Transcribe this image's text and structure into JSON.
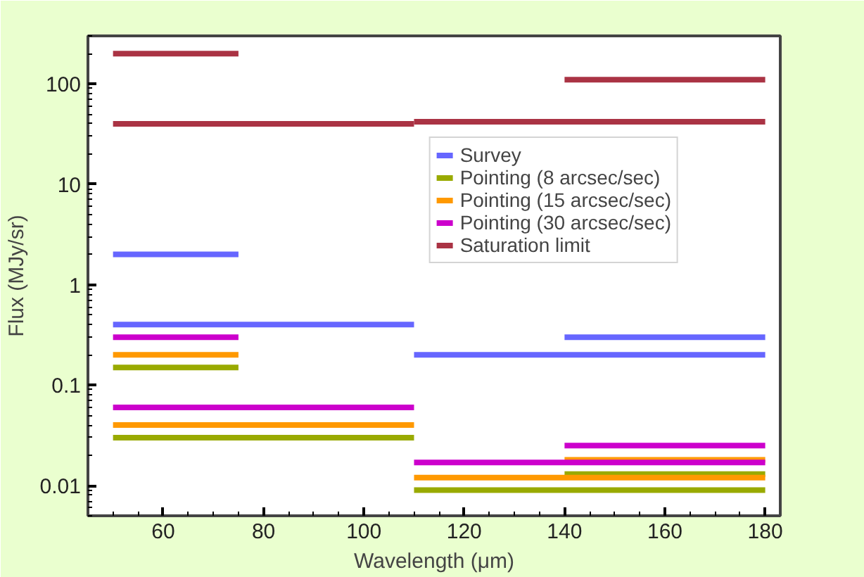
{
  "chart_data": {
    "type": "line",
    "xlabel": "Wavelength (μm)",
    "ylabel": "Flux (MJy/sr)",
    "xlim": [
      45,
      183
    ],
    "xticks": [
      60,
      80,
      100,
      120,
      140,
      160,
      180
    ],
    "ylim": [
      0.005,
      300
    ],
    "yticks": [
      0.01,
      0.1,
      1,
      10,
      100
    ],
    "log": "y",
    "grid": false,
    "legend": "top right",
    "line_style": "solid",
    "marker": "none",
    "series": [
      {
        "name": "Survey",
        "color": "#6666ff",
        "x": [
          50,
          75,
          null,
          50,
          110,
          null,
          110,
          180,
          null,
          140,
          180
        ],
        "values": [
          2,
          2,
          null,
          0.4,
          0.4,
          null,
          0.2,
          0.2,
          null,
          0.3,
          0.3
        ]
      },
      {
        "name": "Pointing (8 arcsec/sec)",
        "color": "#99aa00",
        "x": [
          50,
          75,
          null,
          50,
          110,
          null,
          110,
          180,
          null,
          140,
          180
        ],
        "values": [
          0.15,
          0.15,
          null,
          0.03,
          0.03,
          null,
          0.009,
          0.009,
          null,
          0.013,
          0.013
        ]
      },
      {
        "name": "Pointing (15 arcsec/sec)",
        "color": "#ff9900",
        "x": [
          50,
          75,
          null,
          50,
          110,
          null,
          110,
          180,
          null,
          140,
          180
        ],
        "values": [
          0.2,
          0.2,
          null,
          0.04,
          0.04,
          null,
          0.012,
          0.012,
          null,
          0.018,
          0.018
        ]
      },
      {
        "name": "Pointing (30 arcsec/sec)",
        "color": "#cc00cc",
        "x": [
          50,
          75,
          null,
          50,
          110,
          null,
          110,
          180,
          null,
          140,
          180
        ],
        "values": [
          0.3,
          0.3,
          null,
          0.06,
          0.06,
          null,
          0.017,
          0.017,
          null,
          0.025,
          0.025
        ]
      },
      {
        "name": "Saturation limit",
        "color": "#aa3344",
        "x": [
          50,
          75,
          null,
          50,
          110,
          null,
          110,
          180,
          null,
          140,
          180
        ],
        "values": [
          200,
          200,
          null,
          40,
          40,
          null,
          42,
          42,
          null,
          110,
          110
        ]
      }
    ]
  }
}
